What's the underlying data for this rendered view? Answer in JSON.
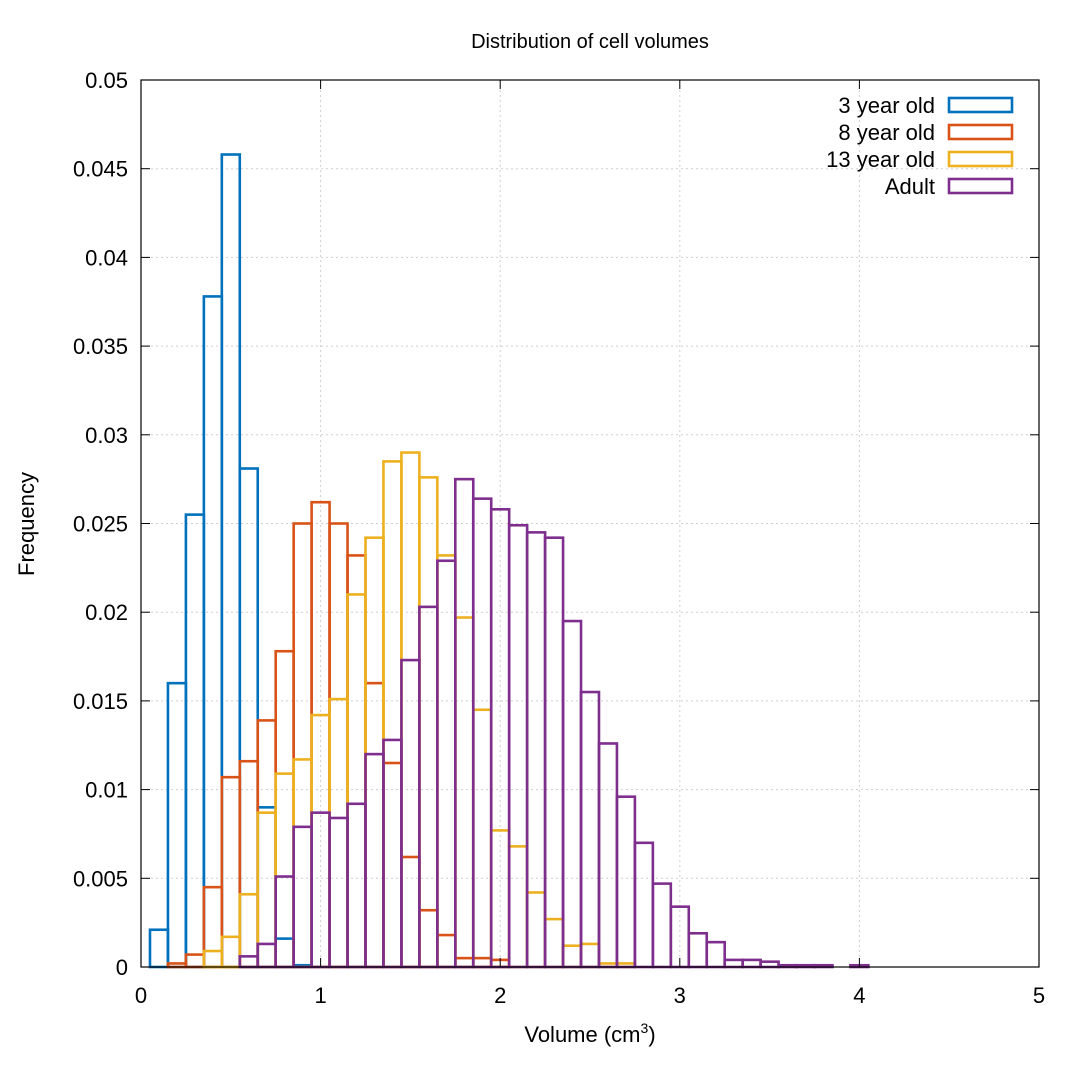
{
  "chart_data": {
    "type": "histogram",
    "title": "Distribution of cell volumes",
    "xlabel": "Volume (cm",
    "xlabel_sup": "3",
    "xlabel_close": ")",
    "ylabel": "Frequency",
    "xlim": [
      0,
      5
    ],
    "ylim": [
      0,
      0.05
    ],
    "xticks": [
      0,
      1,
      2,
      3,
      4,
      5
    ],
    "yticks": [
      0,
      0.005,
      0.01,
      0.015,
      0.02,
      0.025,
      0.03,
      0.035,
      0.04,
      0.045,
      0.05
    ],
    "grid": true,
    "legend_position": "top-right",
    "bin_width": 0.1,
    "series": [
      {
        "name": "3 year old",
        "color": "#0072bd",
        "bins": [
          [
            0.1,
            0.0021
          ],
          [
            0.2,
            0.016
          ],
          [
            0.3,
            0.0255
          ],
          [
            0.4,
            0.0378
          ],
          [
            0.5,
            0.0458
          ],
          [
            0.6,
            0.0281
          ],
          [
            0.7,
            0.009
          ],
          [
            0.8,
            0.0016
          ],
          [
            0.9,
            0.0001
          ]
        ]
      },
      {
        "name": "8 year old",
        "color": "#d95319",
        "bins": [
          [
            0.2,
            0.0002
          ],
          [
            0.3,
            0.0007
          ],
          [
            0.4,
            0.0045
          ],
          [
            0.5,
            0.0107
          ],
          [
            0.6,
            0.0116
          ],
          [
            0.7,
            0.0139
          ],
          [
            0.8,
            0.0178
          ],
          [
            0.9,
            0.025
          ],
          [
            1.0,
            0.0262
          ],
          [
            1.1,
            0.025
          ],
          [
            1.2,
            0.0232
          ],
          [
            1.3,
            0.016
          ],
          [
            1.4,
            0.0115
          ],
          [
            1.5,
            0.0062
          ],
          [
            1.6,
            0.0032
          ],
          [
            1.7,
            0.0018
          ],
          [
            1.8,
            0.0005
          ],
          [
            1.9,
            0.0005
          ],
          [
            2.0,
            0.0004
          ]
        ]
      },
      {
        "name": "13 year old",
        "color": "#edb120",
        "bins": [
          [
            0.4,
            0.0009
          ],
          [
            0.5,
            0.0017
          ],
          [
            0.6,
            0.0041
          ],
          [
            0.7,
            0.0087
          ],
          [
            0.8,
            0.0109
          ],
          [
            0.9,
            0.0117
          ],
          [
            1.0,
            0.0142
          ],
          [
            1.1,
            0.0151
          ],
          [
            1.2,
            0.021
          ],
          [
            1.3,
            0.0242
          ],
          [
            1.4,
            0.0285
          ],
          [
            1.5,
            0.029
          ],
          [
            1.6,
            0.0276
          ],
          [
            1.7,
            0.0232
          ],
          [
            1.8,
            0.0197
          ],
          [
            1.9,
            0.0145
          ],
          [
            2.0,
            0.0077
          ],
          [
            2.1,
            0.0068
          ],
          [
            2.2,
            0.0042
          ],
          [
            2.3,
            0.0027
          ],
          [
            2.4,
            0.0012
          ],
          [
            2.5,
            0.0013
          ],
          [
            2.6,
            0.0002
          ],
          [
            2.7,
            0.0002
          ]
        ]
      },
      {
        "name": "Adult",
        "color": "#7e2f8e",
        "bins": [
          [
            0.6,
            0.0006
          ],
          [
            0.7,
            0.0013
          ],
          [
            0.8,
            0.0051
          ],
          [
            0.9,
            0.0079
          ],
          [
            1.0,
            0.0087
          ],
          [
            1.1,
            0.0084
          ],
          [
            1.2,
            0.0092
          ],
          [
            1.3,
            0.012
          ],
          [
            1.4,
            0.0128
          ],
          [
            1.5,
            0.0173
          ],
          [
            1.6,
            0.0203
          ],
          [
            1.7,
            0.0229
          ],
          [
            1.8,
            0.0275
          ],
          [
            1.9,
            0.0264
          ],
          [
            2.0,
            0.0258
          ],
          [
            2.1,
            0.0249
          ],
          [
            2.2,
            0.0245
          ],
          [
            2.3,
            0.0242
          ],
          [
            2.4,
            0.0195
          ],
          [
            2.5,
            0.0155
          ],
          [
            2.6,
            0.0126
          ],
          [
            2.7,
            0.0096
          ],
          [
            2.8,
            0.007
          ],
          [
            2.9,
            0.0047
          ],
          [
            3.0,
            0.0034
          ],
          [
            3.1,
            0.0019
          ],
          [
            3.2,
            0.0014
          ],
          [
            3.3,
            0.0004
          ],
          [
            3.4,
            0.0004
          ],
          [
            3.5,
            0.0003
          ],
          [
            3.6,
            0.0001
          ],
          [
            3.7,
            0.0001
          ],
          [
            3.8,
            0.0001
          ],
          [
            4.0,
            0.0001
          ]
        ]
      }
    ]
  }
}
